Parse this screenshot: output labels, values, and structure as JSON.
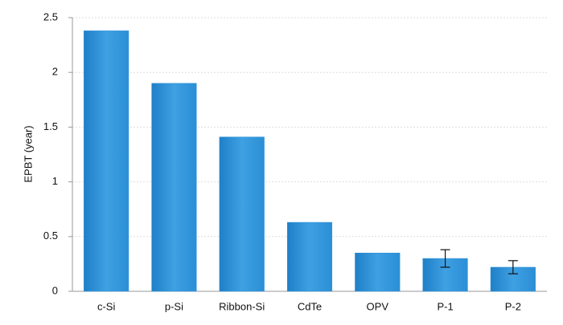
{
  "chart_data": {
    "type": "bar",
    "y_label": "EPBT (year)",
    "categories": [
      "c-Si",
      "p-Si",
      "Ribbon-Si",
      "CdTe",
      "OPV",
      "P-1",
      "P-2"
    ],
    "values": [
      2.38,
      1.9,
      1.41,
      0.63,
      0.35,
      0.3,
      0.22
    ],
    "errors": [
      null,
      null,
      null,
      null,
      null,
      0.08,
      0.06
    ],
    "color": "#2b8fd6",
    "ylim": [
      0,
      2.5
    ],
    "yticks": [
      0,
      0.5,
      1,
      1.5,
      2,
      2.5
    ],
    "grid": true
  }
}
